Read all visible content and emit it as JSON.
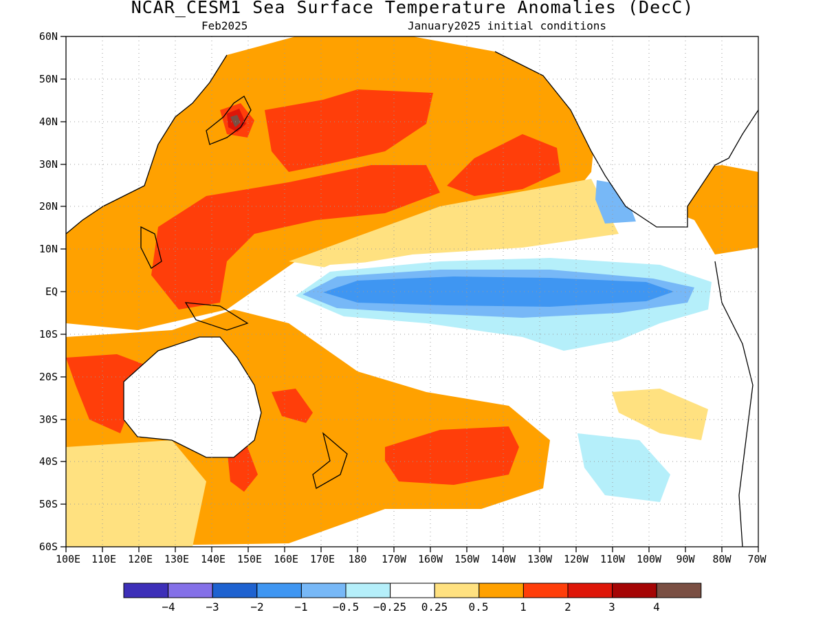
{
  "title": "NCAR_CESM1 Sea Surface Temperature Anomalies (DecC)",
  "subtitle_left": "Feb2025",
  "subtitle_right": "January2025 initial conditions",
  "lat_labels": [
    "60N",
    "50N",
    "40N",
    "30N",
    "20N",
    "10N",
    "EQ",
    "10S",
    "20S",
    "30S",
    "40S",
    "50S",
    "60S"
  ],
  "lon_labels": [
    "100E",
    "110E",
    "120E",
    "130E",
    "140E",
    "150E",
    "160E",
    "170E",
    "180",
    "170W",
    "160W",
    "150W",
    "140W",
    "130W",
    "120W",
    "110W",
    "100W",
    "90W",
    "80W",
    "70W"
  ],
  "colorbar": {
    "colors": [
      "#3d2fb8",
      "#8470e8",
      "#1e62d0",
      "#3f96f2",
      "#77b8f7",
      "#b5effa",
      "#ffffff",
      "#ffe180",
      "#ffa100",
      "#ff3e0a",
      "#de1608",
      "#a50505",
      "#7a4f43"
    ],
    "labels": [
      "−4",
      "−3",
      "−2",
      "−1",
      "−0.5",
      "−0.25",
      "0.25",
      "0.5",
      "1",
      "2",
      "3",
      "4"
    ]
  },
  "colors": {
    "land_outline": "#000000",
    "grid": "#9a9a9a"
  }
}
